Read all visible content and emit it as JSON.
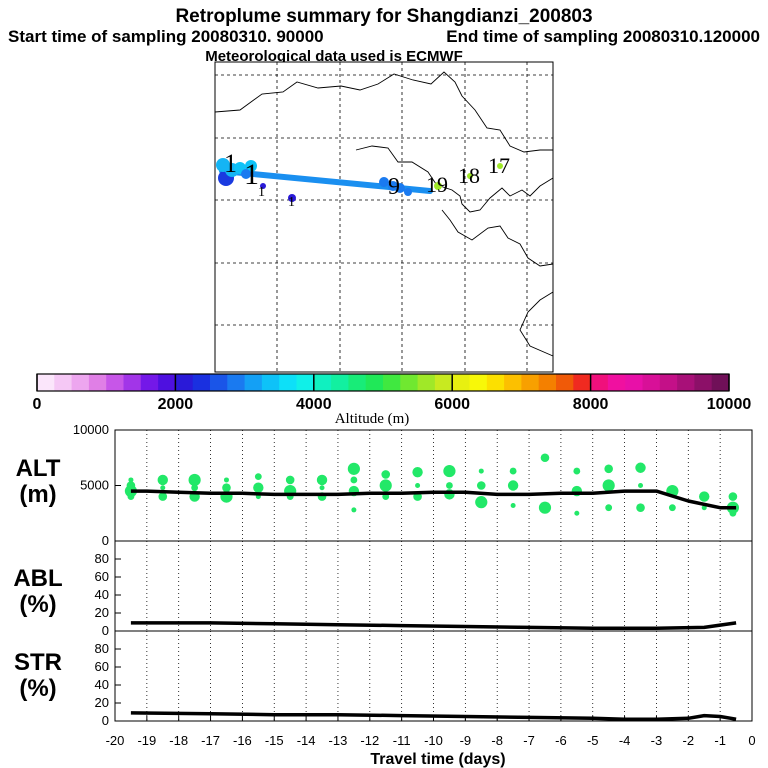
{
  "titles": {
    "main": "Retroplume summary for Shangdianzi_200803",
    "start": "Start time of sampling 20080310. 90000",
    "end": "End time of sampling 20080310.120000",
    "met": "Meteorological data used is ECMWF"
  },
  "map": {
    "track_color": "#1a8ff0",
    "labels": [
      {
        "text": "1",
        "color": "#000"
      },
      {
        "text": "1",
        "color": "#000"
      },
      {
        "text": "1",
        "color": "#000"
      },
      {
        "text": "1",
        "color": "#000"
      },
      {
        "text": "9",
        "color": "#000"
      },
      {
        "text": "19",
        "color": "#000"
      },
      {
        "text": "18",
        "color": "#000"
      },
      {
        "text": "17",
        "color": "#000"
      }
    ]
  },
  "colorbar": {
    "label": "Altitude (m)",
    "ticks": [
      "0",
      "2000",
      "4000",
      "6000",
      "8000",
      "10000"
    ],
    "colors": [
      "#fbe6fb",
      "#f5c8f5",
      "#eda6ef",
      "#e07fe6",
      "#c756e8",
      "#a235e8",
      "#7418e8",
      "#4e10e0",
      "#2a1ad8",
      "#1a30e0",
      "#1a55e8",
      "#1a7af0",
      "#14a0f5",
      "#0ec2f8",
      "#0de0f8",
      "#10f0e8",
      "#10f0c0",
      "#12f0a0",
      "#18ec78",
      "#20e858",
      "#40e840",
      "#70e830",
      "#a0e828",
      "#c8ea20",
      "#e8f010",
      "#f8f808",
      "#fce000",
      "#fcc000",
      "#f8a000",
      "#f48000",
      "#f05a08",
      "#f02a20",
      "#f0107c",
      "#f010a0",
      "#e810a8",
      "#d81098",
      "#c41088",
      "#a81078",
      "#8c1068",
      "#701058"
    ]
  },
  "panels": {
    "alt": {
      "label": "ALT",
      "unit": "(m)"
    },
    "abl": {
      "label": "ABL",
      "unit": "(%)"
    },
    "str": {
      "label": "STR",
      "unit": "(%)"
    }
  },
  "xlabel": "Travel time (days)",
  "chart_data": [
    {
      "type": "line",
      "title": "ALT",
      "ylabel": "ALT (m)",
      "ylim": [
        0,
        10000
      ],
      "yticks": [
        "0",
        "5000",
        "10000"
      ],
      "xlim": [
        -20,
        0
      ],
      "x": [
        -19.5,
        -19,
        -18,
        -17,
        -16,
        -15,
        -14,
        -13,
        -12,
        -11,
        -10,
        -9,
        -8,
        -7,
        -6,
        -5,
        -4,
        -3,
        -2,
        -1,
        -0.5
      ],
      "values": [
        4500,
        4500,
        4400,
        4300,
        4300,
        4200,
        4200,
        4200,
        4300,
        4300,
        4400,
        4400,
        4200,
        4200,
        4300,
        4300,
        4500,
        4500,
        3600,
        3000,
        3000
      ],
      "scatter_color": "#22e868",
      "scatter_x": [
        -19.5,
        -19.5,
        -19.5,
        -19.5,
        -18.5,
        -18.5,
        -18.5,
        -17.5,
        -17.5,
        -17.5,
        -16.5,
        -16.5,
        -16.5,
        -15.5,
        -15.5,
        -15.5,
        -14.5,
        -14.5,
        -14.5,
        -13.5,
        -13.5,
        -13.5,
        -12.5,
        -12.5,
        -12.5,
        -12.5,
        -11.5,
        -11.5,
        -11.5,
        -10.5,
        -10.5,
        -10.5,
        -9.5,
        -9.5,
        -9.5,
        -8.5,
        -8.5,
        -8.5,
        -7.5,
        -7.5,
        -7.5,
        -6.5,
        -6.5,
        -5.5,
        -5.5,
        -5.5,
        -4.5,
        -4.5,
        -4.5,
        -3.5,
        -3.5,
        -3.5,
        -2.5,
        -2.5,
        -1.5,
        -1.5,
        -0.6,
        -0.6,
        -0.6
      ],
      "scatter_y": [
        5500,
        5000,
        4500,
        4000,
        5500,
        4800,
        4000,
        5500,
        4800,
        4000,
        5500,
        4800,
        4000,
        5800,
        4800,
        4000,
        5500,
        4500,
        4000,
        5500,
        4800,
        4000,
        6500,
        5500,
        4500,
        2800,
        6000,
        5000,
        4000,
        6200,
        5000,
        4000,
        6300,
        5000,
        4200,
        6300,
        5000,
        3500,
        6300,
        5000,
        3200,
        7500,
        3000,
        6300,
        4500,
        2500,
        6500,
        5000,
        3000,
        6600,
        5000,
        3000,
        4500,
        3000,
        4000,
        3000,
        4000,
        3000,
        2500
      ]
    },
    {
      "type": "line",
      "title": "ABL",
      "ylabel": "ABL (%)",
      "ylim": [
        0,
        100
      ],
      "yticks": [
        "0",
        "20",
        "40",
        "60",
        "80"
      ],
      "xlim": [
        -20,
        0
      ],
      "x": [
        -19.5,
        -17,
        -15,
        -13,
        -11,
        -9,
        -7,
        -5,
        -3,
        -1.5,
        -0.5
      ],
      "values": [
        9,
        9,
        8,
        7,
        6,
        5,
        4,
        3,
        3,
        4,
        9
      ]
    },
    {
      "type": "line",
      "title": "STR",
      "ylabel": "STR (%)",
      "ylim": [
        0,
        100
      ],
      "yticks": [
        "0",
        "20",
        "40",
        "60",
        "80"
      ],
      "xlim": [
        -20,
        0
      ],
      "x": [
        -19.5,
        -17,
        -15,
        -13,
        -11,
        -9,
        -7,
        -5,
        -4,
        -3,
        -2,
        -1.5,
        -1,
        -0.5
      ],
      "values": [
        9,
        8,
        7,
        7,
        6,
        5,
        4,
        3,
        2,
        2,
        3,
        6,
        5,
        2
      ],
      "xticks": [
        "-20",
        "-19",
        "-18",
        "-17",
        "-16",
        "-15",
        "-14",
        "-13",
        "-12",
        "-11",
        "-10",
        "-9",
        "-8",
        "-7",
        "-6",
        "-5",
        "-4",
        "-3",
        "-2",
        "-1",
        "0"
      ]
    }
  ]
}
